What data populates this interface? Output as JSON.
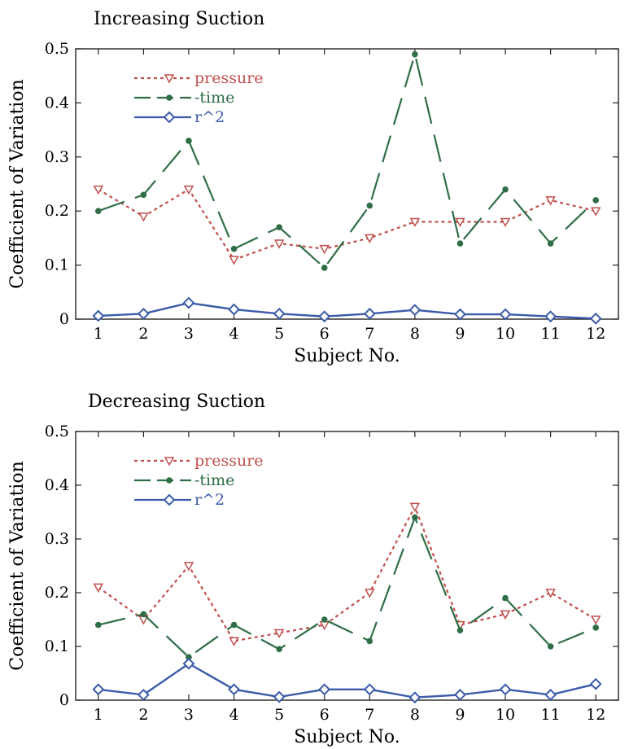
{
  "charts": [
    {
      "type": "line",
      "title": "Increasing Suction",
      "xlabel": "Subject No.",
      "ylabel": "Coefficient of Variation",
      "categories": [
        "1",
        "2",
        "3",
        "4",
        "5",
        "6",
        "7",
        "8",
        "9",
        "10",
        "11",
        "12"
      ],
      "ylim": [
        0,
        0.5
      ],
      "yticks": [
        "0",
        "0.1",
        "0.2",
        "0.3",
        "0.4",
        "0.5"
      ],
      "legend_position": "top-left",
      "series": [
        {
          "name": "pressure",
          "color": "#c0504d",
          "marker": "triangle-down",
          "values": [
            0.24,
            0.19,
            0.24,
            0.11,
            0.14,
            0.13,
            0.15,
            0.18,
            0.18,
            0.18,
            0.22,
            0.2
          ]
        },
        {
          "name": "-time",
          "color": "#2f6e46",
          "marker": "dot",
          "values": [
            0.2,
            0.23,
            0.33,
            0.13,
            0.17,
            0.095,
            0.21,
            0.49,
            0.14,
            0.24,
            0.14,
            0.22
          ]
        },
        {
          "name": "r^2",
          "color": "#3b5ba9",
          "marker": "diamond",
          "values": [
            0.006,
            0.01,
            0.03,
            0.018,
            0.01,
            0.005,
            0.01,
            0.017,
            0.009,
            0.009,
            0.005,
            0.001
          ]
        }
      ]
    },
    {
      "type": "line",
      "title": "Decreasing Suction",
      "xlabel": "Subject No.",
      "ylabel": "Coefficient of Variation",
      "categories": [
        "1",
        "2",
        "3",
        "4",
        "5",
        "6",
        "7",
        "8",
        "9",
        "10",
        "11",
        "12"
      ],
      "ylim": [
        0,
        0.5
      ],
      "yticks": [
        "0",
        "0.1",
        "0.2",
        "0.3",
        "0.4",
        "0.5"
      ],
      "legend_position": "top-left",
      "series": [
        {
          "name": "pressure",
          "color": "#c0504d",
          "marker": "triangle-down",
          "values": [
            0.21,
            0.15,
            0.25,
            0.11,
            0.125,
            0.14,
            0.2,
            0.36,
            0.14,
            0.16,
            0.2,
            0.15
          ]
        },
        {
          "name": "-time",
          "color": "#2f6e46",
          "marker": "dot",
          "values": [
            0.14,
            0.16,
            0.08,
            0.14,
            0.095,
            0.15,
            0.11,
            0.34,
            0.13,
            0.19,
            0.1,
            0.135
          ]
        },
        {
          "name": "r^2",
          "color": "#3b5ba9",
          "marker": "diamond",
          "values": [
            0.02,
            0.01,
            0.068,
            0.02,
            0.006,
            0.02,
            0.02,
            0.005,
            0.01,
            0.02,
            0.01,
            0.03
          ]
        }
      ]
    }
  ]
}
